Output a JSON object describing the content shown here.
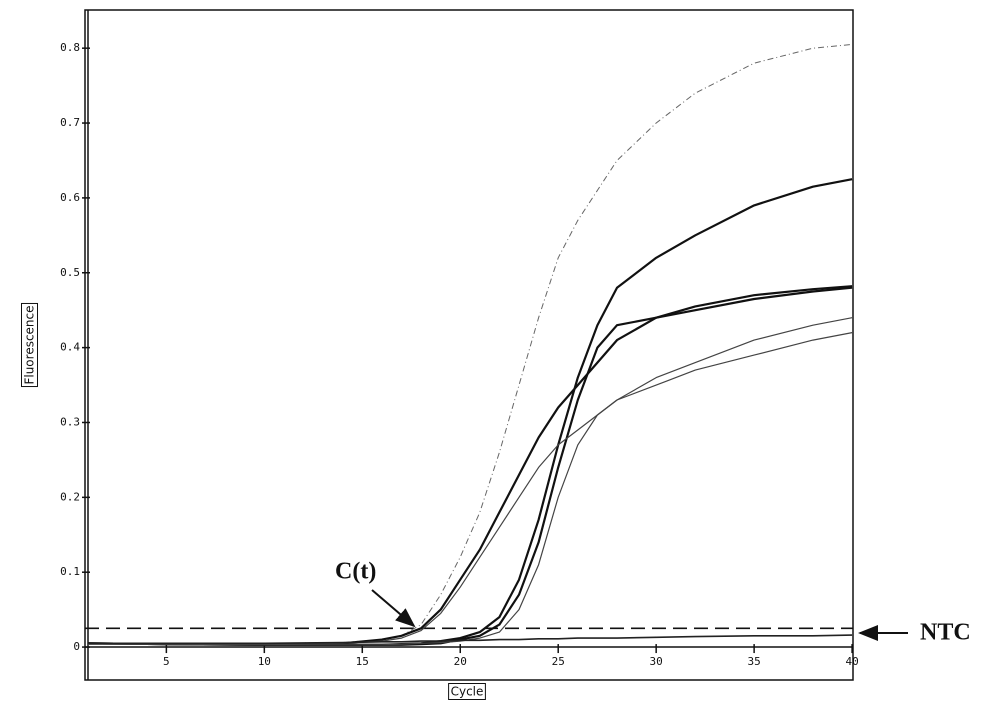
{
  "chart_data": {
    "type": "line",
    "x_label": "Cycle",
    "y_label": "Fluorescence",
    "x": [
      1,
      5,
      10,
      14,
      16,
      17,
      18,
      19,
      20,
      21,
      22,
      23,
      24,
      25,
      26,
      27,
      28,
      30,
      32,
      35,
      38,
      40
    ],
    "series": [
      {
        "color": "#666666",
        "width": 1,
        "dash": true,
        "values": [
          0.005,
          0.005,
          0.005,
          0.006,
          0.01,
          0.015,
          0.03,
          0.07,
          0.12,
          0.18,
          0.26,
          0.35,
          0.44,
          0.52,
          0.57,
          0.61,
          0.65,
          0.7,
          0.74,
          0.78,
          0.8,
          0.805
        ]
      },
      {
        "color": "#111111",
        "width": 2.2,
        "values": [
          0.005,
          0.004,
          0.003,
          0.003,
          0.003,
          0.004,
          0.005,
          0.008,
          0.012,
          0.02,
          0.04,
          0.09,
          0.17,
          0.27,
          0.36,
          0.43,
          0.48,
          0.52,
          0.55,
          0.59,
          0.615,
          0.625
        ]
      },
      {
        "color": "#111111",
        "width": 2.2,
        "values": [
          0.005,
          0.004,
          0.004,
          0.005,
          0.01,
          0.015,
          0.025,
          0.05,
          0.09,
          0.13,
          0.18,
          0.23,
          0.28,
          0.32,
          0.35,
          0.38,
          0.41,
          0.44,
          0.455,
          0.47,
          0.478,
          0.482
        ]
      },
      {
        "color": "#111111",
        "width": 2.2,
        "values": [
          0.005,
          0.004,
          0.003,
          0.003,
          0.003,
          0.003,
          0.004,
          0.005,
          0.01,
          0.015,
          0.03,
          0.07,
          0.14,
          0.24,
          0.33,
          0.4,
          0.43,
          0.44,
          0.45,
          0.465,
          0.475,
          0.48
        ]
      },
      {
        "color": "#444444",
        "width": 1.2,
        "values": [
          0.004,
          0.004,
          0.004,
          0.005,
          0.008,
          0.012,
          0.022,
          0.045,
          0.08,
          0.12,
          0.16,
          0.2,
          0.24,
          0.27,
          0.29,
          0.31,
          0.33,
          0.36,
          0.38,
          0.41,
          0.43,
          0.44
        ]
      },
      {
        "color": "#444444",
        "width": 1.2,
        "values": [
          0.004,
          0.004,
          0.003,
          0.003,
          0.003,
          0.004,
          0.005,
          0.006,
          0.008,
          0.012,
          0.02,
          0.05,
          0.11,
          0.2,
          0.27,
          0.31,
          0.33,
          0.35,
          0.37,
          0.39,
          0.41,
          0.42
        ]
      },
      {
        "color": "#222222",
        "width": 1.6,
        "values": [
          0.005,
          0.005,
          0.005,
          0.006,
          0.007,
          0.007,
          0.008,
          0.008,
          0.009,
          0.009,
          0.01,
          0.01,
          0.011,
          0.011,
          0.012,
          0.012,
          0.012,
          0.013,
          0.014,
          0.015,
          0.015,
          0.016
        ]
      }
    ],
    "threshold": 0.025,
    "annotations": [
      "C(t)",
      "NTC"
    ],
    "xlim": [
      1,
      40.2
    ],
    "ylim": [
      -0.044,
      0.851
    ],
    "xticks": [
      5,
      10,
      15,
      20,
      25,
      30,
      35,
      40
    ],
    "yticks": [
      0,
      0.1,
      0.2,
      0.3,
      0.4,
      0.5,
      0.6,
      0.7,
      0.8
    ]
  }
}
